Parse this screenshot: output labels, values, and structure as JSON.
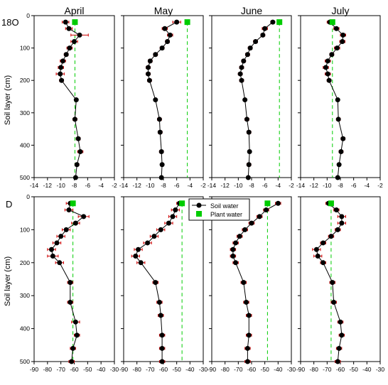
{
  "figure": {
    "row_labels": {
      "top_main": "18",
      "top_suffix": "O",
      "bottom": "D"
    },
    "ylabel": "Soil layer (cm)",
    "legend": {
      "soil": "Soil water",
      "plant": "Plant water"
    },
    "colors": {
      "soil": "#000000",
      "plant": "#00cc00",
      "error": "#cc0000"
    }
  },
  "chart_data": [
    {
      "type": "line",
      "panel": "top-april",
      "title": "April",
      "xlabel": "",
      "ylabel": "Soil layer (cm)",
      "xlim": [
        -14,
        -2
      ],
      "ylim": [
        500,
        0
      ],
      "x_ticks": [
        "-14",
        "-12",
        "-10",
        "-8",
        "-6",
        "-4",
        "-2"
      ],
      "y_ticks": [
        "0",
        "100",
        "200",
        "300",
        "400",
        "500"
      ],
      "series": [
        {
          "name": "Soil water",
          "points": [
            [
              -9.3,
              20,
              0.5
            ],
            [
              -8.8,
              40,
              0.5
            ],
            [
              -7.2,
              60,
              1.3
            ],
            [
              -8.0,
              80,
              0.5
            ],
            [
              -8.7,
              100,
              0.4
            ],
            [
              -9.2,
              120,
              0.3
            ],
            [
              -9.7,
              140,
              0.4
            ],
            [
              -10.0,
              160,
              0.4
            ],
            [
              -10.1,
              180,
              0.6
            ],
            [
              -9.9,
              200,
              0.3
            ],
            [
              -7.7,
              260,
              0.2
            ],
            [
              -7.9,
              320,
              0.3
            ],
            [
              -7.4,
              380,
              0.3
            ],
            [
              -7.1,
              420,
              0.4
            ],
            [
              -7.6,
              460,
              0.3
            ],
            [
              -7.8,
              500,
              0.2
            ]
          ]
        },
        {
          "name": "Plant water",
          "x": -7.9,
          "y": 20
        }
      ]
    },
    {
      "type": "line",
      "panel": "top-may",
      "title": "May",
      "xlabel": "",
      "ylabel": "",
      "xlim": [
        -14,
        -2
      ],
      "ylim": [
        500,
        0
      ],
      "x_ticks": [
        "-14",
        "-12",
        "-10",
        "-8",
        "-6",
        "-4",
        "-2"
      ],
      "y_ticks": [
        "0",
        "100",
        "200",
        "300",
        "400",
        "500"
      ],
      "series": [
        {
          "name": "Soil water",
          "points": [
            [
              -6.0,
              20,
              0.6
            ],
            [
              -7.8,
              40,
              0.4
            ],
            [
              -7.0,
              60,
              0.4
            ],
            [
              -7.4,
              80,
              0.3
            ],
            [
              -8.2,
              100,
              0.3
            ],
            [
              -9.2,
              120,
              0.3
            ],
            [
              -10.0,
              140,
              0.3
            ],
            [
              -10.3,
              160,
              0.3
            ],
            [
              -10.3,
              180,
              0.3
            ],
            [
              -10.1,
              200,
              0.3
            ],
            [
              -9.2,
              260,
              0.2
            ],
            [
              -8.6,
              320,
              0.3
            ],
            [
              -8.5,
              360,
              0.3
            ],
            [
              -8.3,
              420,
              0.3
            ],
            [
              -8.2,
              460,
              0.2
            ],
            [
              -8.3,
              500,
              0.2
            ]
          ]
        },
        {
          "name": "Plant water",
          "x": -4.4,
          "y": 20
        }
      ]
    },
    {
      "type": "line",
      "panel": "top-june",
      "title": "June",
      "xlabel": "",
      "ylabel": "",
      "xlim": [
        -14,
        -2
      ],
      "ylim": [
        500,
        0
      ],
      "x_ticks": [
        "-14",
        "-12",
        "-10",
        "-8",
        "-6",
        "-4",
        "-2"
      ],
      "y_ticks": [
        "0",
        "100",
        "200",
        "300",
        "400",
        "500"
      ],
      "series": [
        {
          "name": "Soil water",
          "points": [
            [
              -4.8,
              20,
              0.3
            ],
            [
              -6.0,
              40,
              0.4
            ],
            [
              -6.3,
              60,
              0.3
            ],
            [
              -7.4,
              80,
              0.3
            ],
            [
              -8.2,
              100,
              0.3
            ],
            [
              -8.6,
              120,
              0.3
            ],
            [
              -9.2,
              140,
              0.3
            ],
            [
              -9.5,
              160,
              0.3
            ],
            [
              -9.7,
              180,
              0.3
            ],
            [
              -9.5,
              200,
              0.3
            ],
            [
              -9.0,
              260,
              0.2
            ],
            [
              -8.7,
              320,
              0.3
            ],
            [
              -8.4,
              360,
              0.3
            ],
            [
              -8.3,
              420,
              0.2
            ],
            [
              -8.4,
              460,
              0.3
            ],
            [
              -8.5,
              500,
              0.2
            ]
          ]
        },
        {
          "name": "Plant water",
          "x": -3.8,
          "y": 20
        }
      ]
    },
    {
      "type": "line",
      "panel": "top-july",
      "title": "July",
      "xlabel": "",
      "ylabel": "",
      "xlim": [
        -14,
        -2
      ],
      "ylim": [
        500,
        0
      ],
      "x_ticks": [
        "-14",
        "-12",
        "-10",
        "-8",
        "-6",
        "-4",
        "-2"
      ],
      "y_ticks": [
        "0",
        "100",
        "200",
        "300",
        "400",
        "500"
      ],
      "series": [
        {
          "name": "Soil water",
          "points": [
            [
              -9.6,
              20,
              0.4
            ],
            [
              -8.6,
              40,
              0.4
            ],
            [
              -7.6,
              60,
              0.4
            ],
            [
              -7.7,
              80,
              0.4
            ],
            [
              -8.5,
              100,
              0.4
            ],
            [
              -9.3,
              120,
              0.3
            ],
            [
              -9.9,
              140,
              0.4
            ],
            [
              -10.2,
              160,
              0.4
            ],
            [
              -9.9,
              180,
              0.4
            ],
            [
              -9.7,
              200,
              0.3
            ],
            [
              -8.4,
              260,
              0.2
            ],
            [
              -8.3,
              320,
              0.3
            ],
            [
              -7.6,
              380,
              0.3
            ],
            [
              -7.9,
              420,
              0.3
            ],
            [
              -8.2,
              460,
              0.2
            ],
            [
              -8.4,
              500,
              0.2
            ]
          ]
        },
        {
          "name": "Plant water",
          "x": -9.2,
          "y": 20
        }
      ]
    },
    {
      "type": "line",
      "panel": "bottom-april",
      "title": "",
      "xlabel": "",
      "ylabel": "Soil layer (cm)",
      "xlim": [
        -90,
        -30
      ],
      "ylim": [
        500,
        0
      ],
      "x_ticks": [
        "-90",
        "-80",
        "-70",
        "-60",
        "-50",
        "-40",
        "-30"
      ],
      "y_ticks": [
        "0",
        "100",
        "200",
        "300",
        "400",
        "500"
      ],
      "series": [
        {
          "name": "Soil water",
          "points": [
            [
              -63,
              20,
              3
            ],
            [
              -64,
              40,
              3
            ],
            [
              -53,
              60,
              4
            ],
            [
              -59,
              80,
              3
            ],
            [
              -66,
              100,
              3
            ],
            [
              -70,
              120,
              3
            ],
            [
              -73,
              140,
              3
            ],
            [
              -77,
              160,
              3
            ],
            [
              -76,
              180,
              4
            ],
            [
              -71,
              200,
              3
            ],
            [
              -63,
              260,
              2
            ],
            [
              -63,
              320,
              2
            ],
            [
              -59,
              380,
              3
            ],
            [
              -58,
              420,
              2
            ],
            [
              -61,
              460,
              2
            ],
            [
              -62,
              500,
              2
            ]
          ]
        },
        {
          "name": "Plant water",
          "x": -61,
          "y": 20
        }
      ]
    },
    {
      "type": "line",
      "panel": "bottom-may",
      "title": "",
      "xlabel": "",
      "ylabel": "",
      "xlim": [
        -90,
        -30
      ],
      "ylim": [
        500,
        0
      ],
      "x_ticks": [
        "-90",
        "-80",
        "-70",
        "-60",
        "-50",
        "-40",
        "-30"
      ],
      "y_ticks": [
        "0",
        "100",
        "200",
        "300",
        "400",
        "500"
      ],
      "series": [
        {
          "name": "Soil water",
          "points": [
            [
              -48,
              20,
              2
            ],
            [
              -51,
              40,
              3
            ],
            [
              -53,
              60,
              3
            ],
            [
              -56,
              80,
              3
            ],
            [
              -62,
              100,
              3
            ],
            [
              -67,
              120,
              3
            ],
            [
              -72,
              140,
              3
            ],
            [
              -79,
              160,
              3
            ],
            [
              -81,
              180,
              3
            ],
            [
              -77,
              200,
              3
            ],
            [
              -66,
              260,
              2
            ],
            [
              -63,
              320,
              2
            ],
            [
              -62,
              360,
              2
            ],
            [
              -61,
              420,
              2
            ],
            [
              -61,
              460,
              2
            ],
            [
              -61,
              500,
              2
            ]
          ]
        },
        {
          "name": "Plant water",
          "x": -46,
          "y": 20
        }
      ]
    },
    {
      "type": "line",
      "panel": "bottom-june",
      "title": "",
      "xlabel": "",
      "ylabel": "",
      "xlim": [
        -90,
        -30
      ],
      "ylim": [
        500,
        0
      ],
      "x_ticks": [
        "-90",
        "-80",
        "-70",
        "-60",
        "-50",
        "-40",
        "-30"
      ],
      "y_ticks": [
        "0",
        "100",
        "200",
        "300",
        "400",
        "500"
      ],
      "series": [
        {
          "name": "Soil water",
          "points": [
            [
              -40,
              20,
              2
            ],
            [
              -49,
              40,
              2
            ],
            [
              -54,
              60,
              2
            ],
            [
              -60,
              80,
              2
            ],
            [
              -65,
              100,
              2
            ],
            [
              -69,
              120,
              2
            ],
            [
              -72,
              140,
              2
            ],
            [
              -74,
              160,
              2
            ],
            [
              -74,
              180,
              2
            ],
            [
              -72,
              200,
              2
            ],
            [
              -66,
              260,
              2
            ],
            [
              -64,
              320,
              2
            ],
            [
              -62,
              360,
              2
            ],
            [
              -62,
              420,
              2
            ],
            [
              -63,
              460,
              2
            ],
            [
              -63,
              500,
              2
            ]
          ]
        },
        {
          "name": "Plant water",
          "x": -48,
          "y": 20
        }
      ]
    },
    {
      "type": "line",
      "panel": "bottom-july",
      "title": "",
      "xlabel": "",
      "ylabel": "",
      "xlim": [
        -90,
        -30
      ],
      "ylim": [
        500,
        0
      ],
      "x_ticks": [
        "-90",
        "-80",
        "-70",
        "-60",
        "-50",
        "-40",
        "-30"
      ],
      "y_ticks": [
        "0",
        "100",
        "200",
        "300",
        "400",
        "500"
      ],
      "series": [
        {
          "name": "Soil water",
          "points": [
            [
              -69,
              20,
              2
            ],
            [
              -63,
              40,
              2
            ],
            [
              -59,
              60,
              3
            ],
            [
              -59,
              80,
              3
            ],
            [
              -62,
              100,
              2
            ],
            [
              -67,
              120,
              2
            ],
            [
              -73,
              140,
              2
            ],
            [
              -78,
              160,
              3
            ],
            [
              -77,
              180,
              3
            ],
            [
              -73,
              200,
              2
            ],
            [
              -66,
              260,
              2
            ],
            [
              -65,
              320,
              2
            ],
            [
              -60,
              380,
              2
            ],
            [
              -59,
              420,
              2
            ],
            [
              -61,
              460,
              2
            ],
            [
              -62,
              500,
              2
            ]
          ]
        },
        {
          "name": "Plant water",
          "x": -67,
          "y": 20
        }
      ]
    }
  ]
}
